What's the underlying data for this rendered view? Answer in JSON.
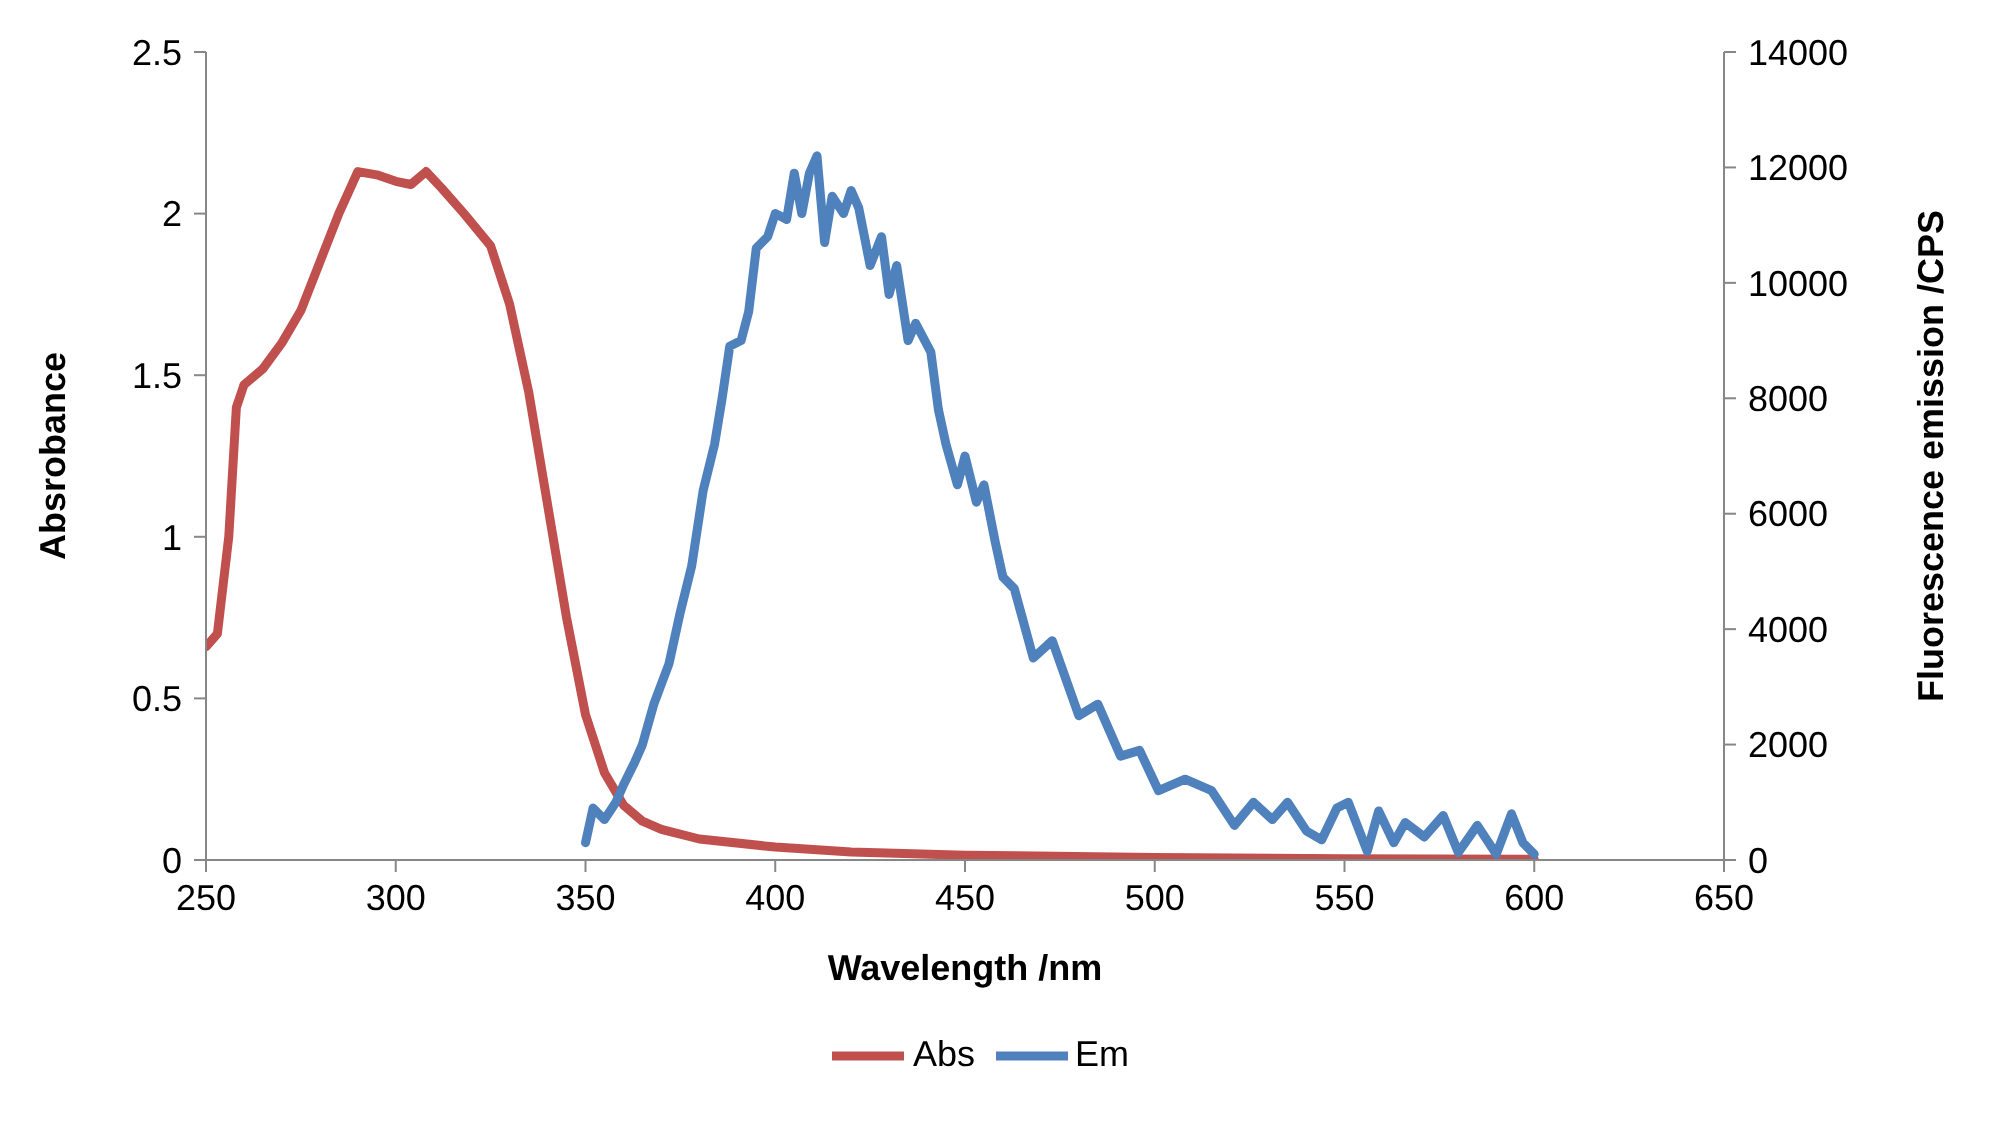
{
  "chart_data": {
    "type": "line",
    "xlabel": "Wavelength /nm",
    "ylabel": "Absrobance",
    "y2label": "Fluorescence emission /CPS",
    "xlim": [
      250,
      650
    ],
    "xticks": [
      250,
      300,
      350,
      400,
      450,
      500,
      550,
      600,
      650
    ],
    "ylim": [
      0,
      2.5
    ],
    "yticks": [
      0,
      0.5,
      1,
      1.5,
      2,
      2.5
    ],
    "y2lim": [
      0,
      14000
    ],
    "y2ticks": [
      0,
      2000,
      4000,
      6000,
      8000,
      10000,
      12000,
      14000
    ],
    "grid": false,
    "legend": "bottom",
    "marker": "none",
    "line_style": "solid",
    "series": [
      {
        "name": "Abs",
        "color": "#c0504d",
        "x": [
          250,
          253,
          256,
          258,
          260,
          265,
          270,
          275,
          280,
          285,
          290,
          295,
          300,
          304,
          308,
          312,
          318,
          325,
          330,
          335,
          340,
          345,
          350,
          355,
          360,
          365,
          370,
          380,
          400,
          420,
          450,
          500,
          550,
          600
        ],
        "values": [
          0.66,
          0.7,
          1.0,
          1.4,
          1.47,
          1.52,
          1.6,
          1.7,
          1.85,
          2.0,
          2.13,
          2.12,
          2.1,
          2.09,
          2.13,
          2.08,
          2.0,
          1.9,
          1.72,
          1.45,
          1.1,
          0.75,
          0.45,
          0.27,
          0.17,
          0.12,
          0.095,
          0.065,
          0.04,
          0.025,
          0.015,
          0.008,
          0.004,
          0.002
        ]
      },
      {
        "name": "Em",
        "color": "#4f81bd",
        "axis": "y2",
        "x": [
          350,
          352,
          355,
          358,
          360,
          363,
          365,
          368,
          372,
          375,
          378,
          381,
          384,
          386,
          388,
          391,
          393,
          395,
          398,
          400,
          403,
          405,
          407,
          409,
          411,
          413,
          415,
          418,
          420,
          422,
          425,
          428,
          430,
          432,
          435,
          437,
          441,
          443,
          445,
          448,
          450,
          453,
          455,
          458,
          460,
          463,
          468,
          473,
          480,
          485,
          491,
          496,
          501,
          508,
          515,
          521,
          526,
          531,
          535,
          540,
          544,
          548,
          551,
          556,
          559,
          563,
          566,
          571,
          576,
          580,
          585,
          590,
          594,
          597,
          600
        ],
        "values": [
          300,
          900,
          700,
          1000,
          1300,
          1700,
          2000,
          2700,
          3400,
          4300,
          5100,
          6400,
          7200,
          8000,
          8900,
          9000,
          9500,
          10600,
          10800,
          11200,
          11100,
          11900,
          11200,
          11900,
          12200,
          10700,
          11500,
          11200,
          11600,
          11300,
          10300,
          10800,
          9800,
          10300,
          9000,
          9300,
          8800,
          7800,
          7200,
          6500,
          7000,
          6200,
          6500,
          5500,
          4900,
          4700,
          3500,
          3800,
          2500,
          2700,
          1800,
          1900,
          1200,
          1400,
          1200,
          600,
          1000,
          700,
          1000,
          500,
          350,
          900,
          1000,
          150,
          850,
          300,
          650,
          400,
          770,
          130,
          600,
          100,
          800,
          300,
          100
        ]
      }
    ]
  }
}
